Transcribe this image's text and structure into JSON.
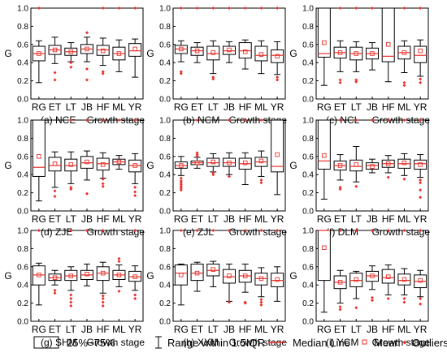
{
  "chart_data": {
    "type": "boxplot",
    "layout": "3x3 grid",
    "shared": {
      "categories": [
        "RG",
        "ET",
        "LT",
        "JB",
        "HF",
        "ML",
        "YR"
      ],
      "xlabel": "Growth stage",
      "ylabel": "G",
      "ylim": [
        0,
        1.0
      ],
      "yticks": [
        "0.0",
        "0.2",
        "0.4",
        "0.6",
        "0.8",
        "1.0"
      ],
      "grid": false,
      "box_color": "#000000",
      "median_color": "#e8302a",
      "mean_color": "#e8302a",
      "outlier_color": "#e8302a"
    },
    "panels": [
      {
        "label": "(a) NCE",
        "boxes": [
          {
            "q1": 0.42,
            "med": 0.5,
            "q3": 0.58,
            "lo": 0.18,
            "hi": 0.64,
            "mean": 0.5,
            "out": [
              1.0
            ]
          },
          {
            "q1": 0.49,
            "med": 0.54,
            "q3": 0.59,
            "lo": 0.39,
            "hi": 0.68,
            "mean": 0.54,
            "out": [
              0.29,
              0.21
            ]
          },
          {
            "q1": 0.48,
            "med": 0.52,
            "q3": 0.56,
            "lo": 0.41,
            "hi": 0.62,
            "mean": 0.52,
            "out": [
              0.4,
              0.35
            ]
          },
          {
            "q1": 0.5,
            "med": 0.55,
            "q3": 0.6,
            "lo": 0.41,
            "hi": 0.68,
            "mean": 0.55,
            "out": [
              0.73,
              0.33,
              0.21
            ]
          },
          {
            "q1": 0.48,
            "med": 0.54,
            "q3": 0.59,
            "lo": 0.37,
            "hi": 0.67,
            "mean": 0.53,
            "out": [
              1.0,
              0.3,
              0.28
            ]
          },
          {
            "q1": 0.43,
            "med": 0.5,
            "q3": 0.57,
            "lo": 0.3,
            "hi": 0.65,
            "mean": 0.5,
            "out": [
              1.0
            ]
          },
          {
            "q1": 0.47,
            "med": 0.53,
            "q3": 0.61,
            "lo": 0.24,
            "hi": 0.66,
            "mean": 0.55,
            "out": [
              1.0
            ]
          }
        ]
      },
      {
        "label": "(b) NCM",
        "boxes": [
          {
            "q1": 0.5,
            "med": 0.55,
            "q3": 0.59,
            "lo": 0.41,
            "hi": 0.64,
            "mean": 0.55,
            "out": [
              1.0,
              0.3,
              0.28
            ]
          },
          {
            "q1": 0.48,
            "med": 0.53,
            "q3": 0.57,
            "lo": 0.4,
            "hi": 0.62,
            "mean": 0.53,
            "out": [
              1.0
            ]
          },
          {
            "q1": 0.43,
            "med": 0.5,
            "q3": 0.58,
            "lo": 0.28,
            "hi": 0.64,
            "mean": 0.51,
            "out": [
              1.0,
              0.24,
              0.22
            ]
          },
          {
            "q1": 0.49,
            "med": 0.53,
            "q3": 0.58,
            "lo": 0.4,
            "hi": 0.63,
            "mean": 0.54,
            "out": [
              1.0
            ]
          },
          {
            "q1": 0.45,
            "med": 0.53,
            "q3": 0.62,
            "lo": 0.33,
            "hi": 0.65,
            "mean": 0.52,
            "out": [
              1.0
            ]
          },
          {
            "q1": 0.42,
            "med": 0.48,
            "q3": 0.58,
            "lo": 0.28,
            "hi": 0.64,
            "mean": 0.49,
            "out": [
              1.0
            ]
          },
          {
            "q1": 0.4,
            "med": 0.48,
            "q3": 0.54,
            "lo": 0.27,
            "hi": 0.63,
            "mean": 0.47,
            "out": [
              1.0,
              0.24,
              0.21
            ]
          }
        ]
      },
      {
        "label": "(c) NCL",
        "boxes": [
          {
            "q1": 0.46,
            "med": 0.5,
            "q3": 1.0,
            "lo": 0.15,
            "hi": 1.0,
            "mean": 0.62,
            "out": []
          },
          {
            "q1": 0.45,
            "med": 0.51,
            "q3": 0.57,
            "lo": 0.3,
            "hi": 0.64,
            "mean": 0.51,
            "out": [
              1.0,
              0.21,
              0.18
            ]
          },
          {
            "q1": 0.43,
            "med": 0.5,
            "q3": 0.57,
            "lo": 0.3,
            "hi": 0.63,
            "mean": 0.5,
            "out": [
              1.0,
              0.21,
              0.19
            ]
          },
          {
            "q1": 0.44,
            "med": 0.5,
            "q3": 0.56,
            "lo": 0.32,
            "hi": 0.62,
            "mean": 0.5,
            "out": [
              1.0
            ]
          },
          {
            "q1": 0.41,
            "med": 0.47,
            "q3": 1.0,
            "lo": 0.19,
            "hi": 1.0,
            "mean": 0.6,
            "out": []
          },
          {
            "q1": 0.44,
            "med": 0.51,
            "q3": 0.58,
            "lo": 0.29,
            "hi": 0.64,
            "mean": 0.51,
            "out": [
              1.0,
              0.18,
              0.15
            ]
          },
          {
            "q1": 0.4,
            "med": 0.48,
            "q3": 0.58,
            "lo": 0.25,
            "hi": 0.65,
            "mean": 0.53,
            "out": [
              1.0,
              0.22,
              0.18
            ]
          }
        ]
      },
      {
        "label": "(d) ZJE",
        "boxes": [
          {
            "q1": 0.38,
            "med": 0.48,
            "q3": 1.0,
            "lo": 0.11,
            "hi": 1.0,
            "mean": 0.6,
            "out": []
          },
          {
            "q1": 0.44,
            "med": 0.5,
            "q3": 0.59,
            "lo": 0.26,
            "hi": 0.65,
            "mean": 0.52,
            "out": [
              0.22,
              0.16
            ]
          },
          {
            "q1": 0.44,
            "med": 0.5,
            "q3": 0.57,
            "lo": 0.3,
            "hi": 0.65,
            "mean": 0.51,
            "out": [
              1.0,
              0.26,
              0.24
            ]
          },
          {
            "q1": 0.47,
            "med": 0.53,
            "q3": 0.6,
            "lo": 0.34,
            "hi": 0.66,
            "mean": 0.54,
            "out": [
              1.0,
              0.19
            ]
          },
          {
            "q1": 0.45,
            "med": 0.52,
            "q3": 0.58,
            "lo": 0.36,
            "hi": 0.64,
            "mean": 0.51,
            "out": [
              1.0,
              0.35,
              0.3,
              0.27
            ]
          },
          {
            "q1": 0.51,
            "med": 0.54,
            "q3": 0.57,
            "lo": 0.46,
            "hi": 0.61,
            "mean": 0.54,
            "out": [
              1.0
            ]
          },
          {
            "q1": 0.43,
            "med": 0.5,
            "q3": 0.56,
            "lo": 0.3,
            "hi": 0.63,
            "mean": 0.5,
            "out": [
              1.0,
              0.26,
              0.21,
              0.17
            ]
          }
        ]
      },
      {
        "label": "(e) ZJL",
        "boxes": [
          {
            "q1": 0.47,
            "med": 0.5,
            "q3": 0.54,
            "lo": 0.39,
            "hi": 0.6,
            "mean": 0.5,
            "out": [
              0.36,
              0.33,
              0.31,
              0.29,
              0.27,
              0.25,
              0.23
            ]
          },
          {
            "q1": 0.51,
            "med": 0.53,
            "q3": 0.55,
            "lo": 0.47,
            "hi": 0.59,
            "mean": 0.53,
            "out": [
              1.0,
              0.64,
              0.62,
              0.6
            ]
          },
          {
            "q1": 0.49,
            "med": 0.53,
            "q3": 0.58,
            "lo": 0.43,
            "hi": 0.63,
            "mean": 0.54,
            "out": [
              0.42,
              0.4
            ]
          },
          {
            "q1": 0.49,
            "med": 0.53,
            "q3": 0.58,
            "lo": 0.4,
            "hi": 0.64,
            "mean": 0.53,
            "out": [
              1.0,
              0.38
            ]
          },
          {
            "q1": 0.46,
            "med": 0.52,
            "q3": 0.58,
            "lo": 0.29,
            "hi": 0.64,
            "mean": 0.53,
            "out": [
              1.0
            ]
          },
          {
            "q1": 0.49,
            "med": 0.54,
            "q3": 0.59,
            "lo": 0.38,
            "hi": 0.66,
            "mean": 0.55,
            "out": [
              1.0,
              0.34,
              0.31
            ]
          },
          {
            "q1": 0.43,
            "med": 0.49,
            "q3": 1.0,
            "lo": 0.18,
            "hi": 1.0,
            "mean": 0.62,
            "out": []
          }
        ]
      },
      {
        "label": "(f) DLM",
        "boxes": [
          {
            "q1": 0.46,
            "med": 0.55,
            "q3": 1.0,
            "lo": 0.13,
            "hi": 1.0,
            "mean": 0.61,
            "out": []
          },
          {
            "q1": 0.45,
            "med": 0.5,
            "q3": 0.55,
            "lo": 0.34,
            "hi": 0.62,
            "mean": 0.5,
            "out": [
              1.0,
              0.26,
              0.24
            ]
          },
          {
            "q1": 0.44,
            "med": 0.49,
            "q3": 0.56,
            "lo": 0.32,
            "hi": 0.71,
            "mean": 0.51,
            "out": [
              1.0,
              0.27
            ]
          },
          {
            "q1": 0.46,
            "med": 0.5,
            "q3": 0.53,
            "lo": 0.42,
            "hi": 0.57,
            "mean": 0.49,
            "out": [
              1.0
            ]
          },
          {
            "q1": 0.48,
            "med": 0.52,
            "q3": 0.56,
            "lo": 0.42,
            "hi": 0.61,
            "mean": 0.52,
            "out": [
              1.0,
              0.37
            ]
          },
          {
            "q1": 0.47,
            "med": 0.52,
            "q3": 0.57,
            "lo": 0.39,
            "hi": 0.63,
            "mean": 0.53,
            "out": [
              1.0,
              0.35
            ]
          },
          {
            "q1": 0.46,
            "med": 0.52,
            "q3": 0.56,
            "lo": 0.37,
            "hi": 0.62,
            "mean": 0.51,
            "out": [
              1.0,
              0.34,
              0.31,
              0.23,
              0.15
            ]
          }
        ]
      },
      {
        "label": "(g) SHM",
        "boxes": [
          {
            "q1": 0.4,
            "med": 0.51,
            "q3": 0.61,
            "lo": 0.18,
            "hi": 0.64,
            "mean": 0.51,
            "out": [
              1.0
            ]
          },
          {
            "q1": 0.45,
            "med": 0.48,
            "q3": 0.52,
            "lo": 0.4,
            "hi": 0.56,
            "mean": 0.48,
            "out": [
              0.34,
              0.31
            ]
          },
          {
            "q1": 0.45,
            "med": 0.5,
            "q3": 0.56,
            "lo": 0.34,
            "hi": 0.6,
            "mean": 0.5,
            "out": [
              1.0,
              0.29,
              0.25,
              0.21,
              0.17
            ]
          },
          {
            "q1": 0.46,
            "med": 0.51,
            "q3": 0.56,
            "lo": 0.39,
            "hi": 0.63,
            "mean": 0.52,
            "out": [
              1.0
            ]
          },
          {
            "q1": 0.45,
            "med": 0.53,
            "q3": 0.6,
            "lo": 0.31,
            "hi": 0.65,
            "mean": 0.53,
            "out": [
              1.0,
              0.28,
              0.25,
              0.21,
              0.17
            ]
          },
          {
            "q1": 0.46,
            "med": 0.51,
            "q3": 0.56,
            "lo": 0.38,
            "hi": 0.62,
            "mean": 0.51,
            "out": [
              0.69,
              0.66,
              0.33
            ]
          },
          {
            "q1": 0.44,
            "med": 0.49,
            "q3": 0.55,
            "lo": 0.34,
            "hi": 0.61,
            "mean": 0.49,
            "out": [
              1.0,
              0.29,
              0.25
            ]
          }
        ]
      },
      {
        "label": "(h) XXM",
        "boxes": [
          {
            "q1": 0.4,
            "med": 0.53,
            "q3": 0.62,
            "lo": 0.18,
            "hi": 0.63,
            "mean": 0.51,
            "out": [
              1.0
            ]
          },
          {
            "q1": 0.45,
            "med": 0.53,
            "q3": 0.63,
            "lo": 0.33,
            "hi": 0.65,
            "mean": 0.53,
            "out": [
              1.0
            ]
          },
          {
            "q1": 0.5,
            "med": 0.56,
            "q3": 0.63,
            "lo": 0.38,
            "hi": 0.66,
            "mean": 0.57,
            "out": [
              1.0
            ]
          },
          {
            "q1": 0.42,
            "med": 0.49,
            "q3": 0.57,
            "lo": 0.22,
            "hi": 0.63,
            "mean": 0.5,
            "out": [
              1.0,
              0.21
            ]
          },
          {
            "q1": 0.43,
            "med": 0.5,
            "q3": 0.56,
            "lo": 0.32,
            "hi": 0.63,
            "mean": 0.5,
            "out": [
              1.0,
              0.21,
              0.2
            ]
          },
          {
            "q1": 0.4,
            "med": 0.47,
            "q3": 0.53,
            "lo": 0.27,
            "hi": 0.59,
            "mean": 0.47,
            "out": [
              1.0,
              0.24,
              0.21,
              0.18
            ]
          },
          {
            "q1": 0.38,
            "med": 0.45,
            "q3": 0.53,
            "lo": 0.22,
            "hi": 0.6,
            "mean": 0.46,
            "out": [
              1.0
            ]
          }
        ]
      },
      {
        "label": "(i) YCM",
        "boxes": [
          {
            "q1": 0.45,
            "med": 1.0,
            "q3": 1.0,
            "lo": 0.1,
            "hi": 1.0,
            "mean": 0.81,
            "out": []
          },
          {
            "q1": 0.36,
            "med": 0.43,
            "q3": 0.5,
            "lo": 0.2,
            "hi": 0.56,
            "mean": 0.43,
            "out": [
              1.0,
              0.16,
              0.13
            ]
          },
          {
            "q1": 0.38,
            "med": 0.45,
            "q3": 0.53,
            "lo": 0.25,
            "hi": 0.55,
            "mean": 0.46,
            "out": [
              1.0,
              0.15
            ]
          },
          {
            "q1": 0.44,
            "med": 0.5,
            "q3": 0.55,
            "lo": 0.35,
            "hi": 0.61,
            "mean": 0.5,
            "out": [
              1.0,
              0.26,
              0.23
            ]
          },
          {
            "q1": 0.42,
            "med": 0.48,
            "q3": 0.57,
            "lo": 0.29,
            "hi": 0.62,
            "mean": 0.49,
            "out": [
              1.0,
              0.25
            ]
          },
          {
            "q1": 0.4,
            "med": 0.45,
            "q3": 0.52,
            "lo": 0.29,
            "hi": 0.58,
            "mean": 0.46,
            "out": [
              1.0,
              0.25,
              0.21
            ]
          },
          {
            "q1": 0.37,
            "med": 0.44,
            "q3": 0.51,
            "lo": 0.27,
            "hi": 0.56,
            "mean": 0.45,
            "out": [
              1.0,
              0.25,
              0.19
            ]
          }
        ]
      }
    ],
    "legend": {
      "box": "25%~75%",
      "range": "Range within 1.5IQR",
      "median": "Median Line",
      "mean": "Mean",
      "outliers": "Outliers"
    }
  }
}
